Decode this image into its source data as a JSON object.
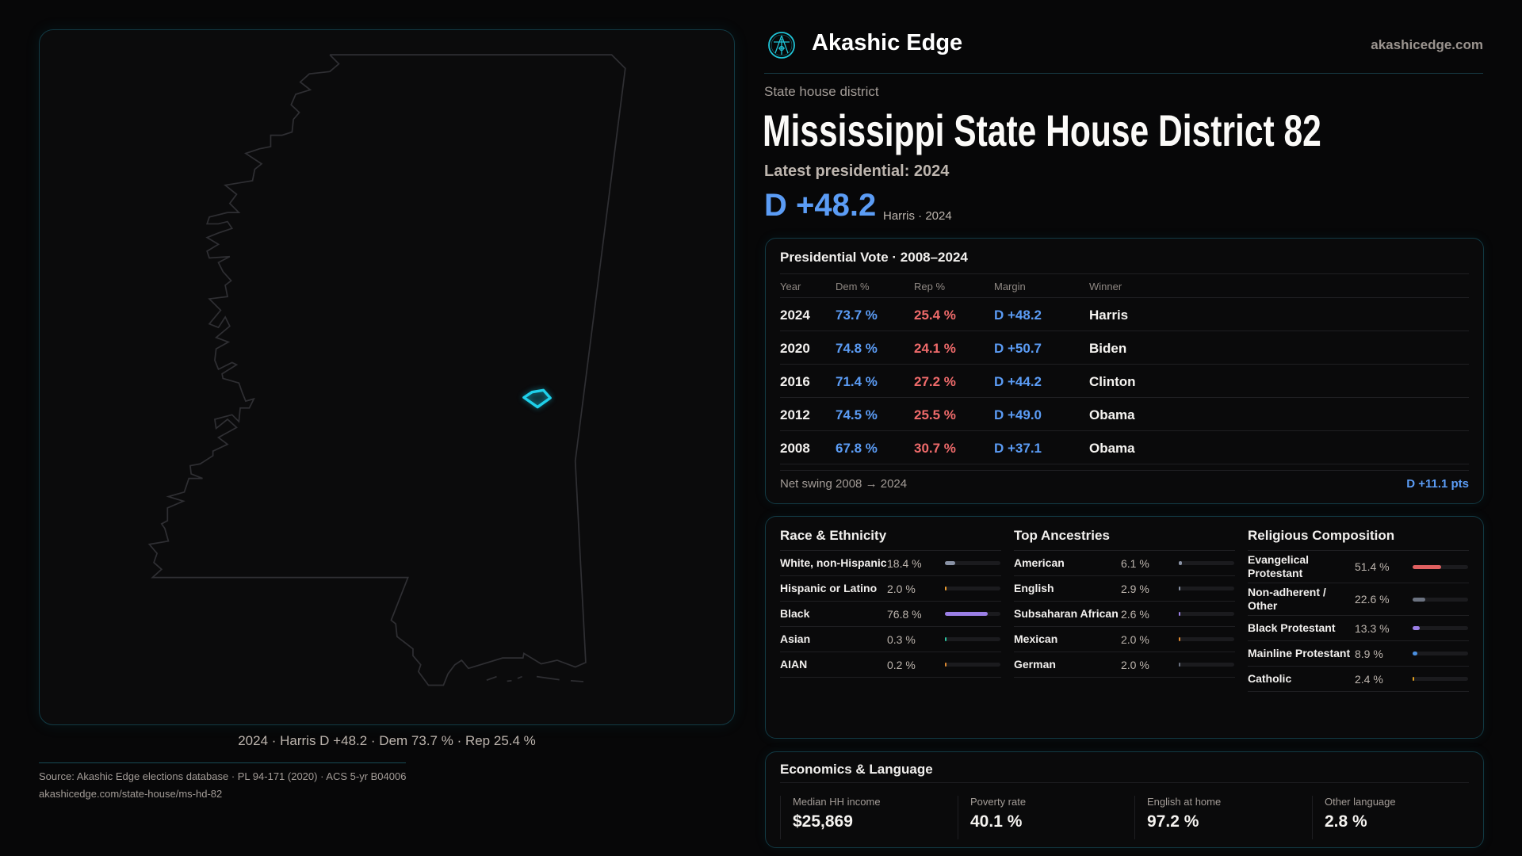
{
  "brand": {
    "name": "Akashic Edge",
    "site": "akashicedge.com",
    "logo_icon": "akashic-emblem-icon",
    "accent": "#1fc3d6"
  },
  "header": {
    "kicker": "State house district",
    "title": "Mississippi State House District 82",
    "latest": "Latest presidential: 2024",
    "margin": "D +48.2",
    "margin_sub": "Harris · 2024"
  },
  "map": {
    "caption": "2024 · Harris D +48.2 · Dem 73.7 % · Rep 25.4 %",
    "highlight_color": "#1fd0ea"
  },
  "presidential": {
    "title": "Presidential Vote · 2008–2024",
    "columns": [
      "Year",
      "Dem %",
      "Rep %",
      "Margin",
      "Winner"
    ],
    "rows": [
      {
        "year": "2024",
        "dem": "73.7 %",
        "rep": "25.4 %",
        "margin": "D +48.2",
        "winner": "Harris"
      },
      {
        "year": "2020",
        "dem": "74.8 %",
        "rep": "24.1 %",
        "margin": "D +50.7",
        "winner": "Biden"
      },
      {
        "year": "2016",
        "dem": "71.4 %",
        "rep": "27.2 %",
        "margin": "D +44.2",
        "winner": "Clinton"
      },
      {
        "year": "2012",
        "dem": "74.5 %",
        "rep": "25.5 %",
        "margin": "D +49.0",
        "winner": "Obama"
      },
      {
        "year": "2008",
        "dem": "67.8 %",
        "rep": "30.7 %",
        "margin": "D +37.1",
        "winner": "Obama"
      }
    ],
    "swing_label": "Net swing 2008 → 2024",
    "swing_value": "D +11.1 pts",
    "colors": {
      "dem": "#5b9cf5",
      "rep": "#f06b6b"
    }
  },
  "demographics": [
    {
      "title": "Race & Ethnicity",
      "items": [
        {
          "label": "White, non-Hispanic",
          "value": "18.4 %",
          "pct": 18.4,
          "color": "#8a93a6"
        },
        {
          "label": "Hispanic or Latino",
          "value": "2.0 %",
          "pct": 2.0,
          "color": "#f0a030"
        },
        {
          "label": "Black",
          "value": "76.8 %",
          "pct": 76.8,
          "color": "#9b7fe6"
        },
        {
          "label": "Asian",
          "value": "0.3 %",
          "pct": 0.3,
          "color": "#2cc4a0"
        },
        {
          "label": "AIAN",
          "value": "0.2 %",
          "pct": 0.2,
          "color": "#e08a30"
        }
      ]
    },
    {
      "title": "Top Ancestries",
      "items": [
        {
          "label": "American",
          "value": "6.1 %",
          "pct": 6.1,
          "color": "#8a93a6"
        },
        {
          "label": "English",
          "value": "2.9 %",
          "pct": 2.9,
          "color": "#8a93a6"
        },
        {
          "label": "Subsaharan African",
          "value": "2.6 %",
          "pct": 2.6,
          "color": "#9b7fe6"
        },
        {
          "label": "Mexican",
          "value": "2.0 %",
          "pct": 2.0,
          "color": "#e08a30"
        },
        {
          "label": "German",
          "value": "2.0 %",
          "pct": 2.0,
          "color": "#6b7280"
        }
      ]
    },
    {
      "title": "Religious Composition",
      "items": [
        {
          "label": "Evangelical Protestant",
          "value": "51.4 %",
          "pct": 51.4,
          "color": "#e06060"
        },
        {
          "label": "Non-adherent / Other",
          "value": "22.6 %",
          "pct": 22.6,
          "color": "#6b7280"
        },
        {
          "label": "Black Protestant",
          "value": "13.3 %",
          "pct": 13.3,
          "color": "#9b7fe6"
        },
        {
          "label": "Mainline Protestant",
          "value": "8.9 %",
          "pct": 8.9,
          "color": "#4a8fe0"
        },
        {
          "label": "Catholic",
          "value": "2.4 %",
          "pct": 2.4,
          "color": "#e0a020"
        }
      ]
    }
  ],
  "economics": {
    "title": "Economics & Language",
    "stats": [
      {
        "label": "Median HH income",
        "value": "$25,869"
      },
      {
        "label": "Poverty rate",
        "value": "40.1 %"
      },
      {
        "label": "English at home",
        "value": "97.2 %"
      },
      {
        "label": "Other language",
        "value": "2.8 %"
      }
    ]
  },
  "footer": {
    "source": "Source: Akashic Edge elections database · PL 94-171 (2020) · ACS 5-yr B04006",
    "url": "akashicedge.com/state-house/ms-hd-82"
  }
}
